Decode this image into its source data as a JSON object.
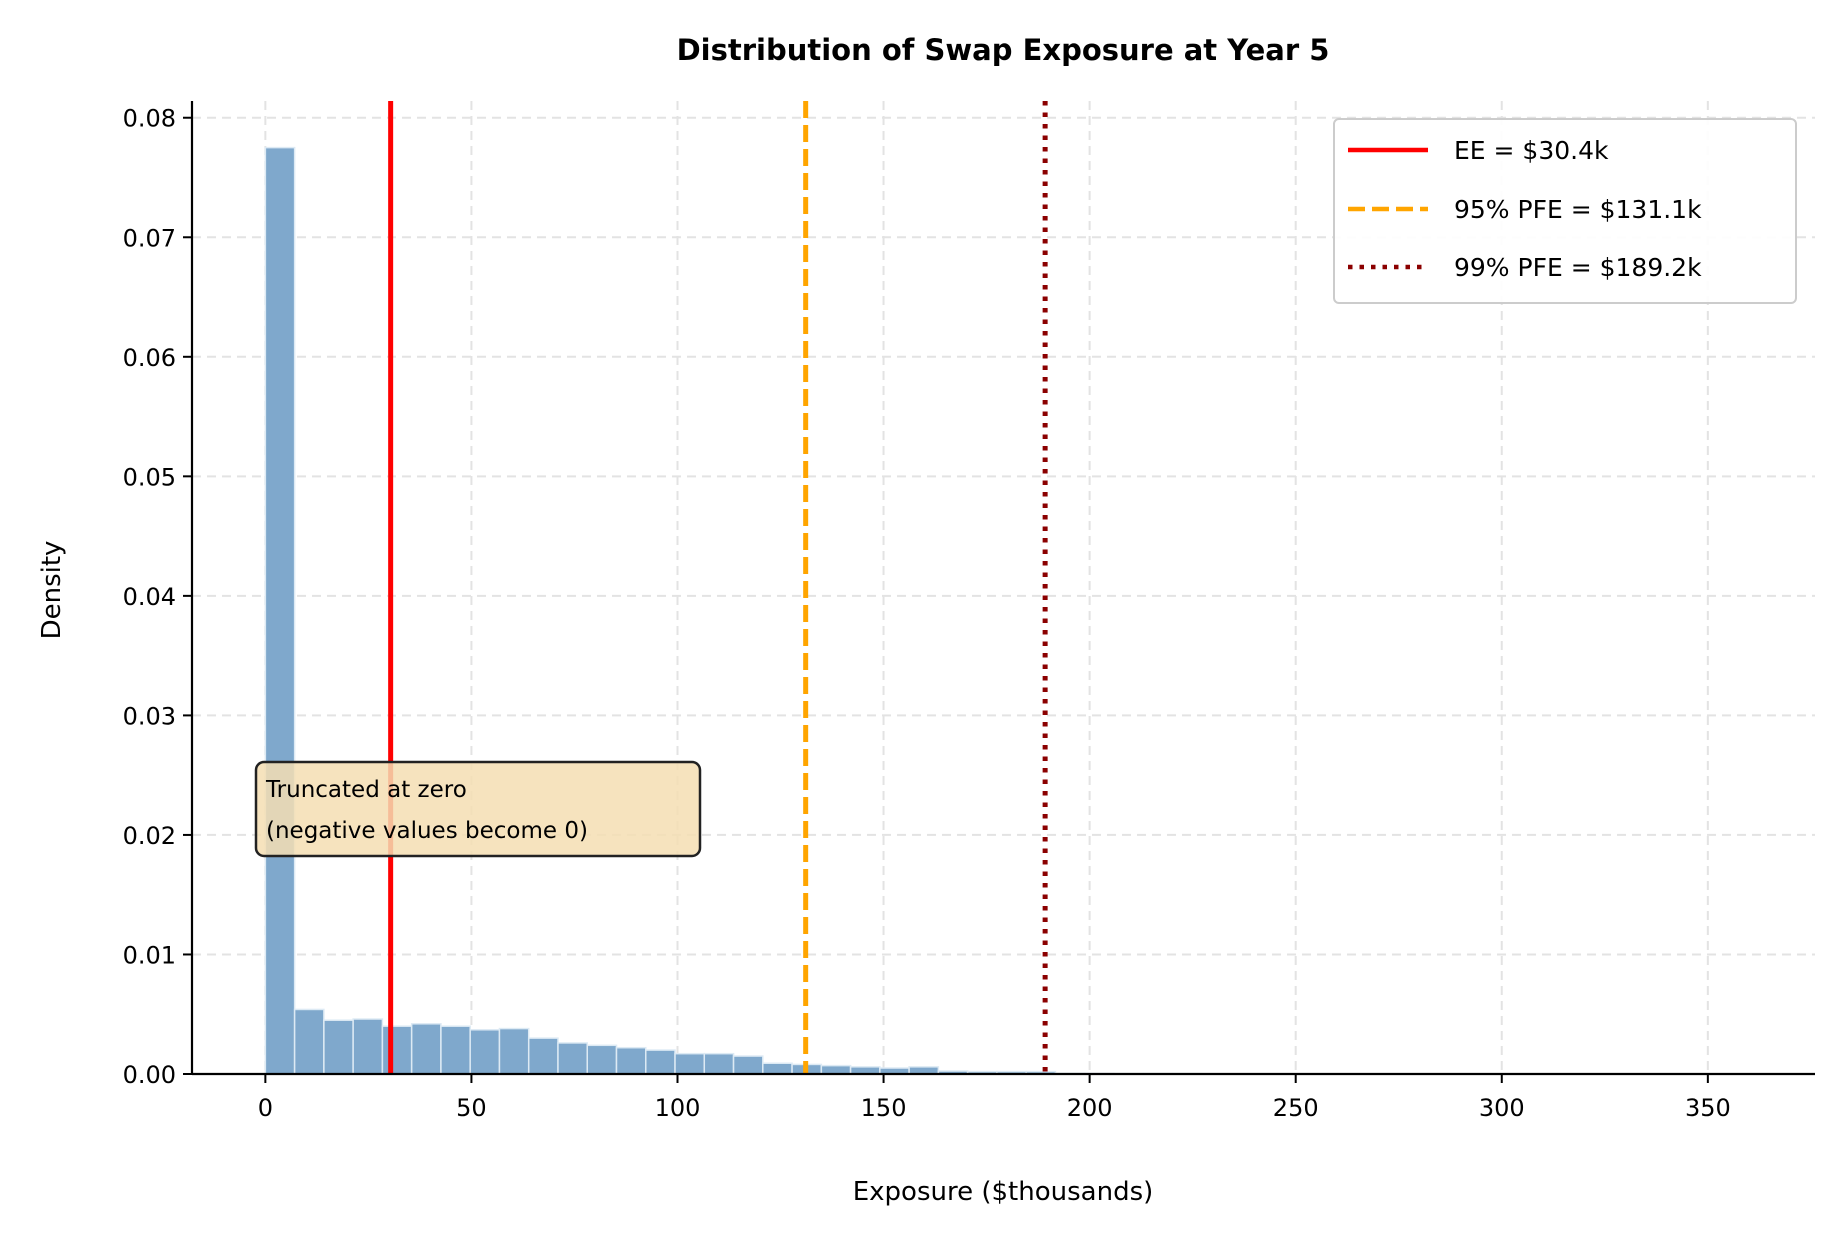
{
  "chart_data": {
    "type": "bar",
    "title": "Distribution of Swap Exposure at Year 5",
    "xlabel": "Exposure ($thousands)",
    "ylabel": "Density",
    "xlim": [
      -17.8,
      376
    ],
    "ylim": [
      0,
      0.0814
    ],
    "xticks": [
      0,
      50,
      100,
      150,
      200,
      250,
      300,
      350
    ],
    "yticks": [
      "0.00",
      "0.01",
      "0.02",
      "0.03",
      "0.04",
      "0.05",
      "0.06",
      "0.07",
      "0.08"
    ],
    "grid": true,
    "bin_width": 7.1,
    "bin_start": 0,
    "values": [
      0.0775,
      0.0054,
      0.0045,
      0.0046,
      0.004,
      0.0042,
      0.004,
      0.0037,
      0.0038,
      0.003,
      0.0026,
      0.0024,
      0.0022,
      0.002,
      0.0017,
      0.0017,
      0.0015,
      0.0009,
      0.0008,
      0.0007,
      0.0006,
      0.0005,
      0.0006,
      0.00025,
      0.0002,
      0.0002,
      0.0002,
      5e-05,
      4e-05,
      3e-05,
      3e-05,
      3e-05,
      2e-05,
      0.0,
      0.0,
      0.0,
      0.0,
      0.0,
      0.0,
      0.0,
      0.0,
      0.0,
      0.0,
      0.0,
      0.0,
      0.0,
      0.0,
      0.0,
      0.0,
      1e-05
    ],
    "bar_color": "#7fa8cc",
    "lines": [
      {
        "name": "EE = $30.4k",
        "x": 30.4,
        "color": "#ff0000",
        "style": "solid"
      },
      {
        "name": "95% PFE = $131.1k",
        "x": 131.1,
        "color": "#ffa500",
        "style": "dashed"
      },
      {
        "name": "99% PFE = $189.2k",
        "x": 189.2,
        "color": "#8b0000",
        "style": "dotted"
      }
    ],
    "legend_position": "top-right",
    "annotation": {
      "lines": [
        "Truncated at zero",
        "(negative values become 0)"
      ],
      "bg": "#f5deb3"
    }
  }
}
